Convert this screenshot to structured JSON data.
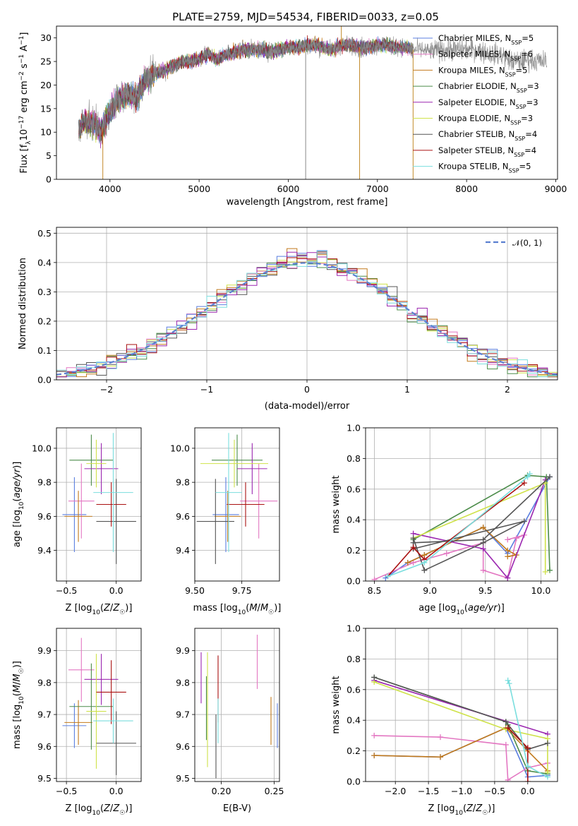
{
  "title": "PLATE=2759, MJD=54534, FIBERID=0033, z=0.05",
  "colors": {
    "Chabrier MILES": "#5b7fe0",
    "Salpeter MILES": "#e377c2",
    "Kroupa MILES": "#c27a1c",
    "Chabrier ELODIE": "#4c8c4a",
    "Salpeter ELODIE": "#9b27b0",
    "Kroupa ELODIE": "#cfe24a",
    "Chabrier STELIB": "#555555",
    "Salpeter STELIB": "#aa1111",
    "Kroupa STELIB": "#7adede"
  },
  "chart_data": [
    {
      "id": "spectrum",
      "type": "line",
      "title": "PLATE=2759, MJD=54534, FIBERID=0033, z=0.05",
      "xlabel": "wavelength [Angstrom, rest frame]",
      "ylabel": "Flux [f_λ10^-17 erg cm^-2 s^-1 A^-1]",
      "xlim": [
        3400,
        9020
      ],
      "ylim": [
        0,
        32.5
      ],
      "xticks": [
        "4000",
        "5000",
        "6000",
        "7000",
        "8000",
        "9000"
      ],
      "yticks": [
        "0",
        "5",
        "10",
        "15",
        "20",
        "25",
        "30"
      ],
      "legend_loc": "upper right",
      "legend": [
        {
          "name": "Chabrier MILES",
          "nssp": "5"
        },
        {
          "name": "Salpeter MILES",
          "nssp": "6"
        },
        {
          "name": "Kroupa MILES",
          "nssp": "5"
        },
        {
          "name": "Chabrier ELODIE",
          "nssp": "3"
        },
        {
          "name": "Salpeter ELODIE",
          "nssp": "3"
        },
        {
          "name": "Kroupa ELODIE",
          "nssp": "3"
        },
        {
          "name": "Chabrier STELIB",
          "nssp": "4"
        },
        {
          "name": "Salpeter STELIB",
          "nssp": "4"
        },
        {
          "name": "Kroupa STELIB",
          "nssp": "5"
        }
      ],
      "observed_spectrum": {
        "x": [
          3650,
          3700,
          3800,
          3900,
          4000,
          4100,
          4200,
          4300,
          4400,
          4500,
          4600,
          4700,
          4800,
          4900,
          5000,
          5100,
          5200,
          5300,
          5400,
          5500,
          5600,
          5700,
          5800,
          5900,
          6000,
          6100,
          6200,
          6300,
          6400,
          6500,
          6600,
          6700,
          6800,
          6900,
          7000,
          7100,
          7200,
          7300,
          7400,
          7500,
          7600,
          7700,
          7800,
          7900,
          8000,
          8100,
          8200,
          8300,
          8400,
          8500,
          8600,
          8700,
          8800,
          8900
        ],
        "y": [
          10.5,
          12.5,
          12,
          10,
          14.5,
          17,
          18,
          17.5,
          21,
          22.5,
          23,
          24,
          25,
          25,
          25.5,
          26.5,
          25.5,
          26.5,
          27,
          27.5,
          27.5,
          27.5,
          27,
          27.5,
          28,
          28,
          28.5,
          28.5,
          28,
          27.5,
          28.5,
          28.5,
          28,
          28,
          28.5,
          28.5,
          28,
          28,
          27.5,
          27.5,
          27,
          27.5,
          27.5,
          27.5,
          27.5,
          27.5,
          27,
          26.5,
          26.5,
          25,
          25,
          25.5,
          25,
          25
        ],
        "spikes": [
          {
            "x": 3920,
            "y": 0
          },
          {
            "x": 6195,
            "y": 0
          },
          {
            "x": 6800,
            "y": 0
          },
          {
            "x": 7400,
            "y": 0
          },
          {
            "x": 6595,
            "y": 32.5
          }
        ]
      },
      "model_x_range": [
        3650,
        7400
      ]
    },
    {
      "id": "residual-hist",
      "type": "step",
      "xlabel": "(data-model)/error",
      "ylabel": "Normed distribution",
      "xlim": [
        -2.5,
        2.5
      ],
      "ylim": [
        0,
        0.52
      ],
      "xticks": [
        "−2",
        "−1",
        "0",
        "1",
        "2"
      ],
      "yticks": [
        "0.0",
        "0.1",
        "0.2",
        "0.3",
        "0.4",
        "0.5"
      ],
      "legend_loc": "upper right",
      "reference_label": "𝒩(0, 1)",
      "bin_width": 0.1
    },
    {
      "id": "age-vs-Z",
      "type": "errorbar",
      "xlabel": "Z [log₁₀(Z/Z☉)]",
      "ylabel": "age [log₁₀(age/yr)]",
      "xlim": [
        -0.6,
        0.25
      ],
      "ylim": [
        9.22,
        10.12
      ],
      "xticks": [
        "−0.5",
        "0.0"
      ],
      "yticks": [
        "9.4",
        "9.6",
        "9.8",
        "10.0"
      ],
      "series": [
        {
          "name": "Chabrier MILES",
          "x": -0.42,
          "xerr": 0.12,
          "y": 9.61,
          "yerr": 0.22
        },
        {
          "name": "Salpeter MILES",
          "x": -0.35,
          "xerr": 0.13,
          "y": 9.69,
          "yerr": 0.22
        },
        {
          "name": "Kroupa MILES",
          "x": -0.38,
          "xerr": 0.14,
          "y": 9.6,
          "yerr": 0.15
        },
        {
          "name": "Chabrier ELODIE",
          "x": -0.25,
          "xerr": 0.22,
          "y": 9.93,
          "yerr": 0.15
        },
        {
          "name": "Salpeter ELODIE",
          "x": -0.15,
          "xerr": 0.17,
          "y": 9.88,
          "yerr": 0.15
        },
        {
          "name": "Kroupa ELODIE",
          "x": -0.2,
          "xerr": 0.1,
          "y": 9.91,
          "yerr": 0.14
        },
        {
          "name": "Chabrier STELIB",
          "x": 0.0,
          "xerr": 0.2,
          "y": 9.57,
          "yerr": 0.25
        },
        {
          "name": "Salpeter STELIB",
          "x": -0.05,
          "xerr": 0.15,
          "y": 9.67,
          "yerr": 0.13
        },
        {
          "name": "Kroupa STELIB",
          "x": -0.03,
          "xerr": 0.2,
          "y": 9.74,
          "yerr": 0.35
        }
      ]
    },
    {
      "id": "age-vs-mass",
      "type": "errorbar",
      "xlabel": "mass [log₁₀(M/M☉)]",
      "xlim": [
        9.5,
        9.95
      ],
      "ylim": [
        9.22,
        10.12
      ],
      "xticks": [
        "9.50",
        "9.75"
      ],
      "yticks": [
        "9.4",
        "9.6",
        "9.8",
        "10.0"
      ],
      "series": [
        {
          "name": "Chabrier MILES",
          "x": 9.665,
          "xerr": 0.07,
          "y": 9.61,
          "yerr": 0.22
        },
        {
          "name": "Salpeter MILES",
          "x": 9.84,
          "xerr": 0.1,
          "y": 9.69,
          "yerr": 0.22
        },
        {
          "name": "Kroupa MILES",
          "x": 9.675,
          "xerr": 0.07,
          "y": 9.6,
          "yerr": 0.15
        },
        {
          "name": "Chabrier ELODIE",
          "x": 9.725,
          "xerr": 0.135,
          "y": 9.93,
          "yerr": 0.15
        },
        {
          "name": "Salpeter ELODIE",
          "x": 9.805,
          "xerr": 0.08,
          "y": 9.88,
          "yerr": 0.15
        },
        {
          "name": "Kroupa ELODIE",
          "x": 9.71,
          "xerr": 0.18,
          "y": 9.91,
          "yerr": 0.14
        },
        {
          "name": "Chabrier STELIB",
          "x": 9.61,
          "xerr": 0.1,
          "y": 9.57,
          "yerr": 0.25
        },
        {
          "name": "Salpeter STELIB",
          "x": 9.77,
          "xerr": 0.1,
          "y": 9.67,
          "yerr": 0.13
        },
        {
          "name": "Kroupa STELIB",
          "x": 9.68,
          "xerr": 0.07,
          "y": 9.74,
          "yerr": 0.35
        }
      ]
    },
    {
      "id": "mass-weight-vs-age",
      "type": "line",
      "xlabel": "age [log₁₀(age/yr)]",
      "ylabel": "mass weight",
      "xlim": [
        8.42,
        10.15
      ],
      "ylim": [
        0,
        1
      ],
      "xticks": [
        "8.5",
        "9.0",
        "9.5",
        "10.0"
      ],
      "yticks": [
        "0.0",
        "0.2",
        "0.4",
        "0.6",
        "0.8",
        "1.0"
      ],
      "series": [
        {
          "name": "Chabrier MILES",
          "x": [
            8.6,
            8.8,
            8.95,
            9.48,
            9.7,
            10.08
          ],
          "y": [
            0.02,
            0.12,
            0.17,
            0.35,
            0.18,
            0.68
          ]
        },
        {
          "name": "Salpeter MILES",
          "x": [
            8.5,
            8.85,
            9.15,
            9.48,
            9.48,
            9.7,
            9.78,
            9.85,
            9.7
          ],
          "y": [
            0.01,
            0.12,
            0.18,
            0.25,
            0.07,
            0.02,
            0.28,
            0.3,
            0.27
          ]
        },
        {
          "name": "Kroupa MILES",
          "x": [
            8.8,
            8.95,
            9.48,
            9.7,
            9.78,
            9.7
          ],
          "y": [
            0.12,
            0.17,
            0.35,
            0.2,
            0.17,
            0.16
          ]
        },
        {
          "name": "Chabrier ELODIE",
          "x": [
            8.85,
            9.88,
            10.05,
            10.08
          ],
          "y": [
            0.27,
            0.69,
            0.68,
            0.07
          ]
        },
        {
          "name": "Salpeter ELODIE",
          "x": [
            8.85,
            9.48,
            9.7,
            10.04
          ],
          "y": [
            0.31,
            0.21,
            0.02,
            0.66
          ]
        },
        {
          "name": "Kroupa ELODIE",
          "x": [
            8.85,
            10.04,
            10.04
          ],
          "y": [
            0.28,
            0.64,
            0.06
          ]
        },
        {
          "name": "Chabrier STELIB",
          "x": [
            8.85,
            8.95,
            9.48,
            9.85,
            8.85,
            8.85,
            9.48,
            10.08
          ],
          "y": [
            0.28,
            0.07,
            0.25,
            0.39,
            0.21,
            0.25,
            0.27,
            0.68
          ]
        },
        {
          "name": "Salpeter STELIB",
          "x": [
            8.62,
            8.85,
            8.95,
            9.85
          ],
          "y": [
            0.03,
            0.22,
            0.14,
            0.64
          ]
        },
        {
          "name": "Kroupa STELIB",
          "x": [
            8.62,
            8.95,
            9.88,
            9.9
          ],
          "y": [
            0.03,
            0.12,
            0.68,
            0.7
          ]
        }
      ]
    },
    {
      "id": "mass-vs-Z",
      "type": "errorbar",
      "xlabel": "Z [log₁₀(Z/Z☉)]",
      "ylabel": "mass [log₁₀(M/M☉)]",
      "xlim": [
        -0.6,
        0.25
      ],
      "ylim": [
        9.49,
        9.97
      ],
      "xticks": [
        "−0.5",
        "0.0"
      ],
      "yticks": [
        "9.5",
        "9.6",
        "9.7",
        "9.8",
        "9.9"
      ],
      "series": [
        {
          "name": "Chabrier MILES",
          "x": -0.42,
          "xerr": 0.12,
          "y": 9.665,
          "yerr": 0.07
        },
        {
          "name": "Salpeter MILES",
          "x": -0.35,
          "xerr": 0.13,
          "y": 9.84,
          "yerr": 0.1
        },
        {
          "name": "Kroupa MILES",
          "x": -0.38,
          "xerr": 0.14,
          "y": 9.675,
          "yerr": 0.07
        },
        {
          "name": "Chabrier ELODIE",
          "x": -0.25,
          "xerr": 0.22,
          "y": 9.725,
          "yerr": 0.135
        },
        {
          "name": "Salpeter ELODIE",
          "x": -0.15,
          "xerr": 0.17,
          "y": 9.81,
          "yerr": 0.08
        },
        {
          "name": "Kroupa ELODIE",
          "x": -0.2,
          "xerr": 0.1,
          "y": 9.71,
          "yerr": 0.18
        },
        {
          "name": "Chabrier STELIB",
          "x": 0.0,
          "xerr": 0.2,
          "y": 9.61,
          "yerr": 0.1
        },
        {
          "name": "Salpeter STELIB",
          "x": -0.05,
          "xerr": 0.15,
          "y": 9.77,
          "yerr": 0.1
        },
        {
          "name": "Kroupa STELIB",
          "x": -0.03,
          "xerr": 0.2,
          "y": 9.68,
          "yerr": 0.07
        }
      ]
    },
    {
      "id": "mass-vs-ebv",
      "type": "errorbar",
      "xlabel": "E(B-V)",
      "xlim": [
        0.175,
        0.255
      ],
      "ylim": [
        9.49,
        9.97
      ],
      "xticks": [
        "0.20",
        "0.25"
      ],
      "yticks": [
        "9.5",
        "9.6",
        "9.7",
        "9.8",
        "9.9"
      ],
      "series": [
        {
          "name": "Chabrier MILES",
          "x": 0.253,
          "y": 9.665,
          "yerr": 0.07
        },
        {
          "name": "Salpeter MILES",
          "x": 0.234,
          "y": 9.865,
          "yerr": 0.085
        },
        {
          "name": "Kroupa MILES",
          "x": 0.247,
          "y": 9.68,
          "yerr": 0.075
        },
        {
          "name": "Chabrier ELODIE",
          "x": 0.186,
          "y": 9.72,
          "yerr": 0.1
        },
        {
          "name": "Salpeter ELODIE",
          "x": 0.181,
          "y": 9.815,
          "yerr": 0.08
        },
        {
          "name": "Kroupa ELODIE",
          "x": 0.187,
          "y": 9.715,
          "yerr": 0.18
        },
        {
          "name": "Chabrier STELIB",
          "x": 0.195,
          "y": 9.6,
          "yerr": 0.1
        },
        {
          "name": "Salpeter STELIB",
          "x": 0.197,
          "y": 9.78,
          "yerr": 0.105
        },
        {
          "name": "Kroupa STELIB",
          "x": 0.197,
          "y": 9.68,
          "yerr": 0.07
        }
      ]
    },
    {
      "id": "mass-weight-vs-Z",
      "type": "line",
      "xlabel": "Z [log₁₀(Z/Z☉)]",
      "ylabel": "mass weight",
      "xlim": [
        -2.45,
        0.45
      ],
      "ylim": [
        0,
        1
      ],
      "xticks": [
        "−2.0",
        "−1.5",
        "−1.0",
        "−0.5",
        "0.0"
      ],
      "yticks": [
        "0.0",
        "0.2",
        "0.4",
        "0.6",
        "0.8",
        "1.0"
      ],
      "series": [
        {
          "name": "Chabrier MILES",
          "x": [
            -2.32,
            -1.32,
            -0.33,
            0.0,
            0.3
          ],
          "y": [
            0.17,
            0.16,
            0.35,
            0.03,
            0.04
          ]
        },
        {
          "name": "Salpeter MILES",
          "x": [
            -2.32,
            -1.32,
            -0.33,
            -0.3,
            0.0,
            0.3
          ],
          "y": [
            0.3,
            0.29,
            0.24,
            0.01,
            0.09,
            0.12
          ]
        },
        {
          "name": "Kroupa MILES",
          "x": [
            -2.32,
            -1.32,
            -0.33,
            0.0,
            0.3
          ],
          "y": [
            0.17,
            0.16,
            0.35,
            0.2,
            0.07
          ]
        },
        {
          "name": "Chabrier ELODIE",
          "x": [
            -2.32,
            -0.33,
            -0.3,
            0.0,
            0.3
          ],
          "y": [
            0.68,
            0.39,
            0.37,
            0.07,
            0.05
          ]
        },
        {
          "name": "Salpeter ELODIE",
          "x": [
            -2.32,
            0.3
          ],
          "y": [
            0.66,
            0.31
          ]
        },
        {
          "name": "Kroupa ELODIE",
          "x": [
            -2.32,
            -0.33,
            0.3,
            0.3
          ],
          "y": [
            0.65,
            0.34,
            0.28,
            0.06
          ]
        },
        {
          "name": "Chabrier STELIB",
          "x": [
            -2.32,
            -0.33,
            0.0,
            0.3
          ],
          "y": [
            0.68,
            0.39,
            0.21,
            0.25
          ]
        },
        {
          "name": "Salpeter STELIB",
          "x": [
            -0.3,
            0.0,
            0.0
          ],
          "y": [
            0.35,
            0.22,
            0.0
          ]
        },
        {
          "name": "Kroupa STELIB",
          "x": [
            -0.3,
            -0.28,
            0.0,
            0.3
          ],
          "y": [
            0.66,
            0.64,
            0.1,
            0.03
          ]
        }
      ]
    }
  ]
}
